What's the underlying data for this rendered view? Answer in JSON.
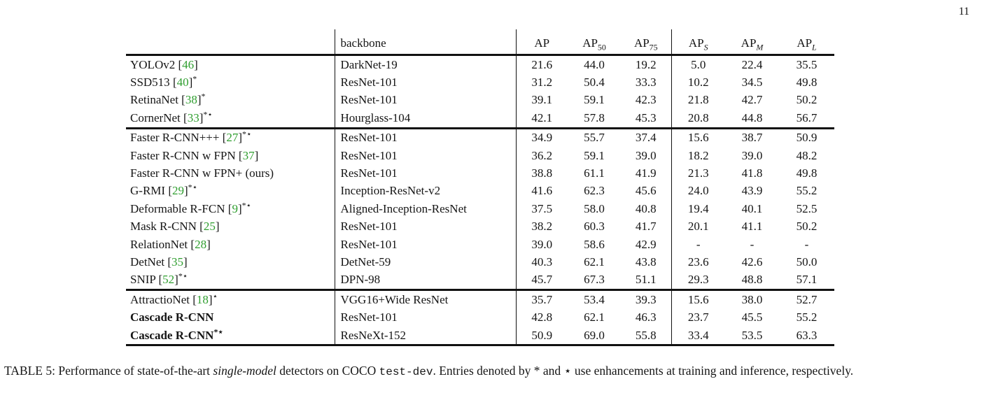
{
  "page": {
    "number": "11"
  },
  "colors": {
    "citation_green": "#2f9e2f",
    "text_black": "#151515",
    "rule_black": "#111111"
  },
  "table": {
    "columns": {
      "model": "",
      "backbone": "backbone",
      "metrics": [
        {
          "base": "AP",
          "sub": "",
          "italic_sub": false
        },
        {
          "base": "AP",
          "sub": "50",
          "italic_sub": false
        },
        {
          "base": "AP",
          "sub": "75",
          "italic_sub": false
        },
        {
          "base": "AP",
          "sub": "S",
          "italic_sub": true
        },
        {
          "base": "AP",
          "sub": "M",
          "italic_sub": true
        },
        {
          "base": "AP",
          "sub": "L",
          "italic_sub": true
        }
      ]
    },
    "sections": [
      {
        "rows": [
          {
            "pre": "YOLOv2 ",
            "cite": "46",
            "sup": "",
            "bold": false,
            "backbone": "DarkNet-19",
            "vals": [
              "21.6",
              "44.0",
              "19.2",
              "5.0",
              "22.4",
              "35.5"
            ]
          },
          {
            "pre": "SSD513 ",
            "cite": "40",
            "sup": "*",
            "bold": false,
            "backbone": "ResNet-101",
            "vals": [
              "31.2",
              "50.4",
              "33.3",
              "10.2",
              "34.5",
              "49.8"
            ]
          },
          {
            "pre": "RetinaNet ",
            "cite": "38",
            "sup": "*",
            "bold": false,
            "backbone": "ResNet-101",
            "vals": [
              "39.1",
              "59.1",
              "42.3",
              "21.8",
              "42.7",
              "50.2"
            ]
          },
          {
            "pre": "CornerNet ",
            "cite": "33",
            "sup": "*⋆",
            "bold": false,
            "backbone": "Hourglass-104",
            "vals": [
              "42.1",
              "57.8",
              "45.3",
              "20.8",
              "44.8",
              "56.7"
            ]
          }
        ]
      },
      {
        "rows": [
          {
            "pre": "Faster R-CNN+++ ",
            "cite": "27",
            "sup": "*⋆",
            "bold": false,
            "backbone": "ResNet-101",
            "vals": [
              "34.9",
              "55.7",
              "37.4",
              "15.6",
              "38.7",
              "50.9"
            ]
          },
          {
            "pre": "Faster R-CNN w FPN ",
            "cite": "37",
            "sup": "",
            "bold": false,
            "backbone": "ResNet-101",
            "vals": [
              "36.2",
              "59.1",
              "39.0",
              "18.2",
              "39.0",
              "48.2"
            ]
          },
          {
            "pre": "Faster R-CNN w FPN+ (ours)",
            "cite": "",
            "sup": "",
            "bold": false,
            "backbone": "ResNet-101",
            "vals": [
              "38.8",
              "61.1",
              "41.9",
              "21.3",
              "41.8",
              "49.8"
            ]
          },
          {
            "pre": "G-RMI ",
            "cite": "29",
            "sup": "*⋆",
            "bold": false,
            "backbone": "Inception-ResNet-v2",
            "vals": [
              "41.6",
              "62.3",
              "45.6",
              "24.0",
              "43.9",
              "55.2"
            ]
          },
          {
            "pre": "Deformable R-FCN ",
            "cite": "9",
            "sup": "*⋆",
            "bold": false,
            "backbone": "Aligned-Inception-ResNet",
            "vals": [
              "37.5",
              "58.0",
              "40.8",
              "19.4",
              "40.1",
              "52.5"
            ]
          },
          {
            "pre": "Mask R-CNN ",
            "cite": "25",
            "sup": "",
            "bold": false,
            "backbone": "ResNet-101",
            "vals": [
              "38.2",
              "60.3",
              "41.7",
              "20.1",
              "41.1",
              "50.2"
            ]
          },
          {
            "pre": "RelationNet ",
            "cite": "28",
            "sup": "",
            "bold": false,
            "backbone": "ResNet-101",
            "vals": [
              "39.0",
              "58.6",
              "42.9",
              "-",
              "-",
              "-"
            ]
          },
          {
            "pre": "DetNet ",
            "cite": "35",
            "sup": "",
            "bold": false,
            "backbone": "DetNet-59",
            "vals": [
              "40.3",
              "62.1",
              "43.8",
              "23.6",
              "42.6",
              "50.0"
            ]
          },
          {
            "pre": "SNIP ",
            "cite": "52",
            "sup": "*⋆",
            "bold": false,
            "backbone": "DPN-98",
            "vals": [
              "45.7",
              "67.3",
              "51.1",
              "29.3",
              "48.8",
              "57.1"
            ]
          }
        ]
      },
      {
        "rows": [
          {
            "pre": "AttractioNet ",
            "cite": "18",
            "sup": "⋆",
            "bold": false,
            "backbone": "VGG16+Wide ResNet",
            "vals": [
              "35.7",
              "53.4",
              "39.3",
              "15.6",
              "38.0",
              "52.7"
            ]
          },
          {
            "pre": "Cascade R-CNN",
            "cite": "",
            "sup": "",
            "bold": true,
            "backbone": "ResNet-101",
            "vals": [
              "42.8",
              "62.1",
              "46.3",
              "23.7",
              "45.5",
              "55.2"
            ]
          },
          {
            "pre": "Cascade R-CNN",
            "cite": "",
            "sup": "*⋆",
            "bold": true,
            "backbone": "ResNeXt-152",
            "vals": [
              "50.9",
              "69.0",
              "55.8",
              "33.4",
              "53.5",
              "63.3"
            ]
          }
        ]
      }
    ]
  },
  "caption": {
    "label": "TABLE 5:",
    "part1": "Performance of state-of-the-art",
    "italic": "single-model",
    "part2": "detectors on COCO",
    "code": "test-dev",
    "part3": ". Entries denoted by",
    "star1": "*",
    "part4": "and",
    "star2": "⋆",
    "part5": "use enhancements at training and inference, respectively."
  }
}
